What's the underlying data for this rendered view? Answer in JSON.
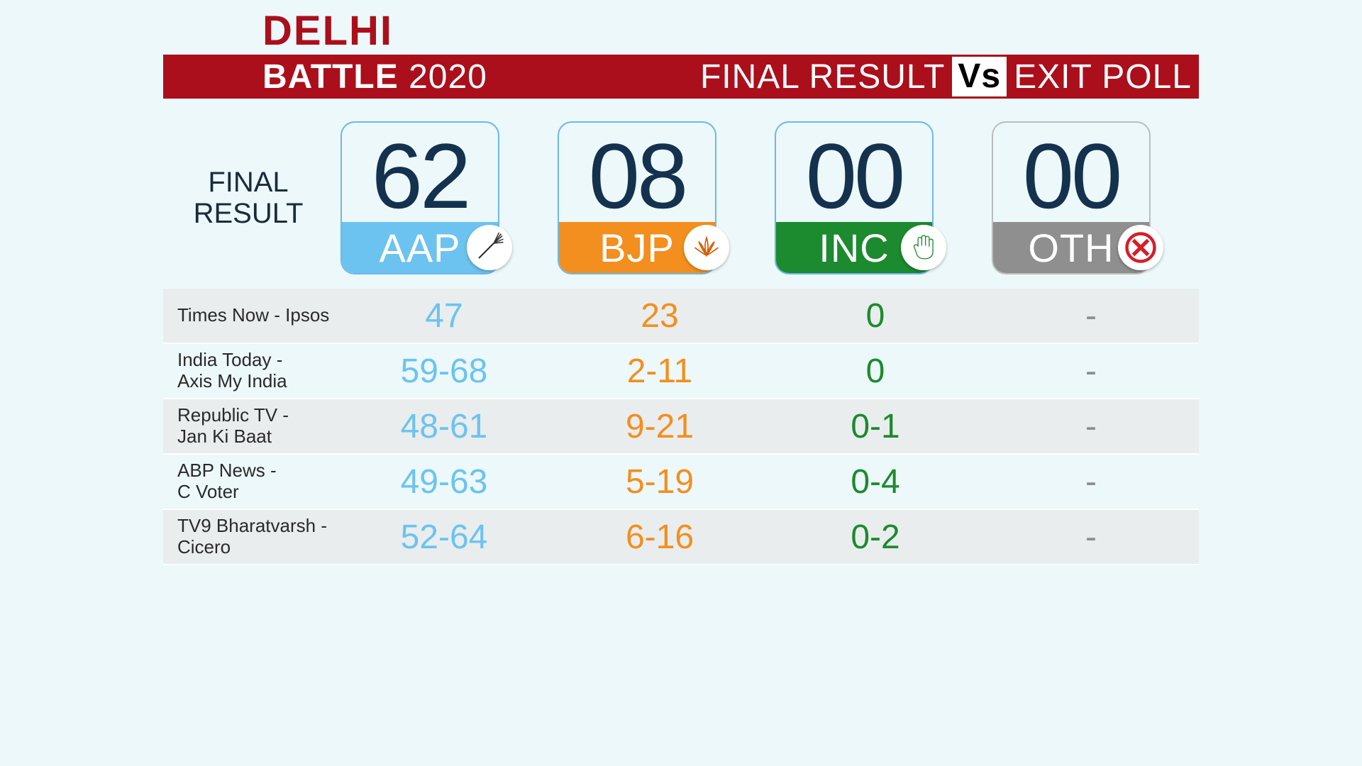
{
  "colors": {
    "background": "#ecf8fa",
    "banner": "#ab0f1b",
    "title": "#ab0f1b",
    "card_border": "#6fb7e8",
    "card_number": "#14324e",
    "row_alt": "#e9edee",
    "source_text": "#2a2a2a"
  },
  "header": {
    "title": "DELHI",
    "battle": "BATTLE",
    "year": "2020",
    "final_result": "FINAL RESULT",
    "vs": "Vs",
    "exit_poll": "EXIT POLL"
  },
  "result_label_line1": "FINAL",
  "result_label_line2": "RESULT",
  "parties": [
    {
      "code": "AAP",
      "seats": "62",
      "color": "#6cc3ef",
      "text_color": "#6cc3ef",
      "icon": "broom"
    },
    {
      "code": "BJP",
      "seats": "08",
      "color": "#f38f1e",
      "text_color": "#f38f1e",
      "icon": "lotus"
    },
    {
      "code": "INC",
      "seats": "00",
      "color": "#1c8a2e",
      "text_color": "#1c8a2e",
      "icon": "hand"
    },
    {
      "code": "OTH",
      "seats": "00",
      "color": "#8f8f8f",
      "text_color": "#8f8f8f",
      "icon": "cross"
    }
  ],
  "polls": [
    {
      "source": "Times Now - Ipsos",
      "values": [
        "47",
        "23",
        "0",
        "-"
      ]
    },
    {
      "source": "India Today -\nAxis My India",
      "values": [
        "59-68",
        "2-11",
        "0",
        "-"
      ]
    },
    {
      "source": "Republic TV -\nJan Ki Baat",
      "values": [
        "48-61",
        "9-21",
        "0-1",
        "-"
      ]
    },
    {
      "source": "ABP News -\nC Voter",
      "values": [
        "49-63",
        "5-19",
        "0-4",
        "-"
      ]
    },
    {
      "source": "TV9 Bharatvarsh -\nCicero",
      "values": [
        "52-64",
        "6-16",
        "0-2",
        "-"
      ]
    }
  ],
  "typography": {
    "title_fontsize": 58,
    "banner_fontsize": 48,
    "card_number_fontsize": 130,
    "party_name_fontsize": 56,
    "source_fontsize": 26,
    "value_fontsize": 48
  }
}
